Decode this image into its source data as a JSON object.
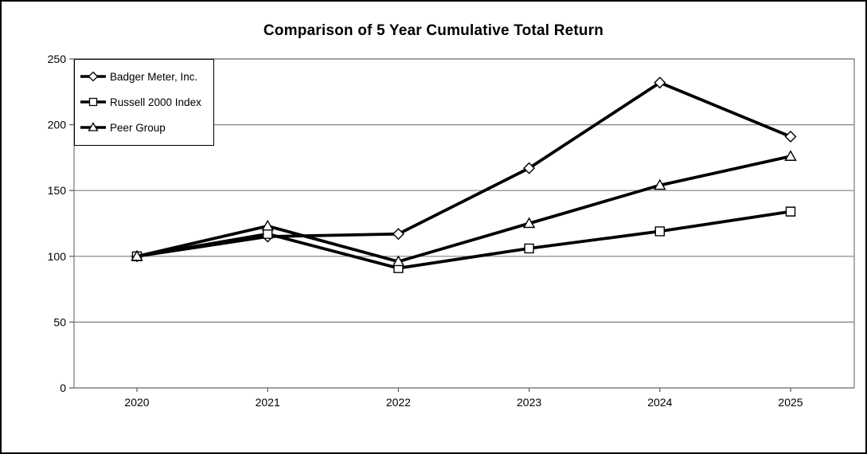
{
  "chart_data": {
    "type": "line",
    "title": "Comparison of 5 Year Cumulative Total Return",
    "categories": [
      "2020",
      "2021",
      "2022",
      "2023",
      "2024",
      "2025"
    ],
    "series": [
      {
        "name": "Badger Meter, Inc.",
        "marker": "diamond",
        "values": [
          100,
          115,
          117,
          167,
          232,
          191
        ]
      },
      {
        "name": "Russell 2000 Index",
        "marker": "square",
        "values": [
          100,
          117,
          91,
          106,
          119,
          134
        ]
      },
      {
        "name": "Peer Group",
        "marker": "triangle",
        "values": [
          100,
          123,
          96,
          125,
          154,
          176
        ]
      }
    ],
    "xlabel": "",
    "ylabel": "",
    "ylim": [
      0,
      250
    ],
    "yticks": [
      0,
      50,
      100,
      150,
      200,
      250
    ],
    "grid": true,
    "legend_position": "top-left",
    "colors": {
      "line": "#000000",
      "marker_fill": "#ffffff",
      "grid": "#808080",
      "frame": "#808080",
      "axis": "#595959",
      "text": "#000000",
      "background": "#ffffff"
    }
  }
}
